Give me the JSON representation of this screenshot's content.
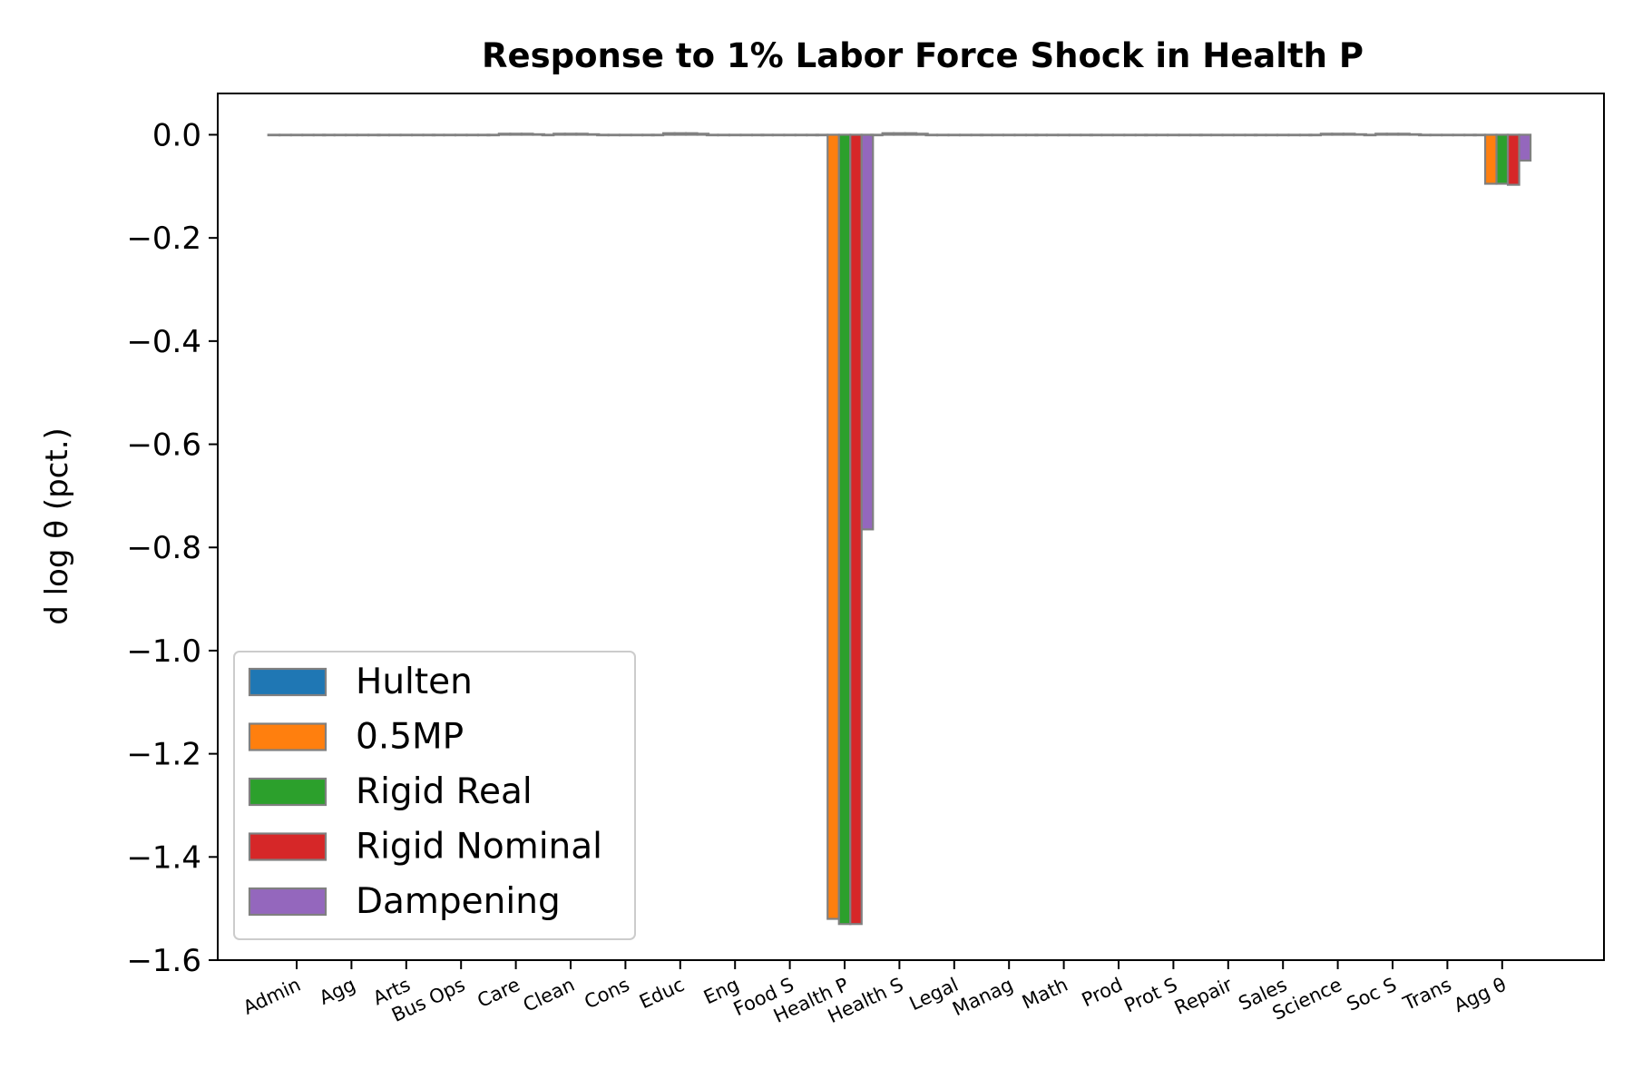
{
  "chart_data": {
    "type": "bar",
    "title": "Response to 1% Labor Force Shock in Health P",
    "ylabel": "d log θ  (pct.)",
    "ylim": [
      -1.6,
      0.08
    ],
    "yticks": [
      0.0,
      -0.2,
      -0.4,
      -0.6,
      -0.8,
      -1.0,
      -1.2,
      -1.4,
      -1.6
    ],
    "ytick_labels": [
      "0.0",
      "−0.2",
      "−0.4",
      "−0.6",
      "−0.8",
      "−1.0",
      "−1.2",
      "−1.4",
      "−1.6"
    ],
    "legend_position": "lower-left",
    "categories": [
      "Admin",
      "Agg",
      "Arts",
      "Bus Ops",
      "Care",
      "Clean",
      "Cons",
      "Educ",
      "Eng",
      "Food S",
      "Health P",
      "Health S",
      "Legal",
      "Manag",
      "Math",
      "Prod",
      "Prot S",
      "Repair",
      "Sales",
      "Science",
      "Soc S",
      "Trans",
      "Agg θ"
    ],
    "series": [
      {
        "name": "Hulten",
        "color": "#1f77b4",
        "values": [
          0,
          0,
          0,
          0,
          0,
          0,
          0,
          0,
          0,
          0,
          0,
          0,
          0,
          0,
          0,
          0,
          0,
          0,
          0,
          0,
          0,
          0,
          0
        ]
      },
      {
        "name": "0.5MP",
        "color": "#ff7f0e",
        "values": [
          0,
          0,
          0,
          0,
          0.002,
          0.002,
          0,
          0.003,
          0,
          0,
          -1.52,
          0.003,
          0,
          0,
          0,
          0,
          0,
          0,
          0,
          0.002,
          0.002,
          0,
          -0.095
        ]
      },
      {
        "name": "Rigid Real",
        "color": "#2ca02c",
        "values": [
          0,
          0,
          0,
          0,
          0.002,
          0.002,
          0,
          0.003,
          0,
          0,
          -1.53,
          0.003,
          0,
          0,
          0,
          0,
          0,
          0,
          0,
          0.002,
          0.002,
          0,
          -0.095
        ]
      },
      {
        "name": "Rigid Nominal",
        "color": "#d62728",
        "values": [
          0,
          0,
          0,
          0,
          0.002,
          0.002,
          0,
          0.003,
          0,
          0,
          -1.53,
          0.003,
          0,
          0,
          0,
          0,
          0,
          0,
          0,
          0.002,
          0.002,
          0,
          -0.097
        ]
      },
      {
        "name": "Dampening",
        "color": "#9467bd",
        "values": [
          0,
          0,
          0,
          0,
          0.001,
          0.001,
          0,
          0.002,
          0,
          0,
          -0.765,
          0.002,
          0,
          0,
          0,
          0,
          0,
          0,
          0,
          0.001,
          0.001,
          0,
          -0.05
        ]
      }
    ],
    "bar_edge_color": "#808080",
    "grid": false
  }
}
